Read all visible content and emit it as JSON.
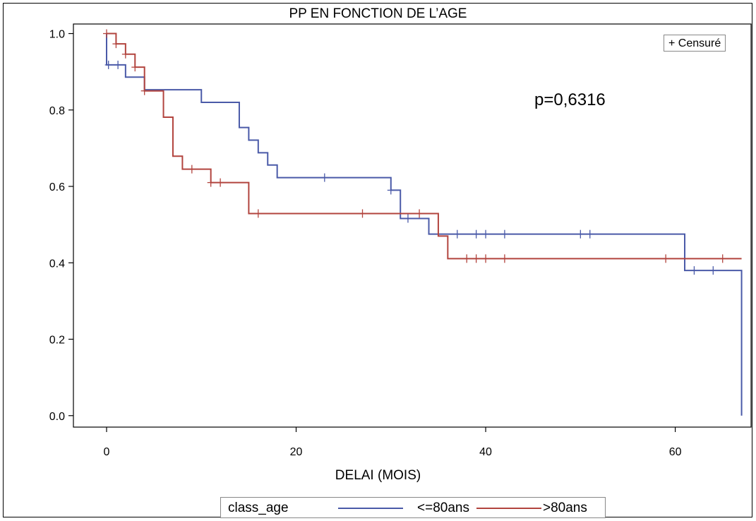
{
  "chart_data": {
    "type": "line",
    "title": "PP EN FONCTION DE L’AGE",
    "xlabel": "DELAI (MOIS)",
    "ylabel": "",
    "xlim": [
      -3.5,
      68
    ],
    "ylim": [
      -0.03,
      1.025
    ],
    "x_ticks": [
      0,
      20,
      40,
      60
    ],
    "y_ticks": [
      0.0,
      0.2,
      0.4,
      0.6,
      0.8,
      1.0
    ],
    "y_tick_labels": [
      "0.0",
      "0.2",
      "0.4",
      "0.6",
      "0.8",
      "1.0"
    ],
    "grid": false,
    "step": true,
    "annotation": "p=0,6316",
    "censor_legend": "+ Censuré",
    "legend_title": "class_age",
    "legend_placement": "bottom",
    "series": [
      {
        "name": "<=80ans",
        "color": "#4a5aa8",
        "steps": [
          [
            0,
            1.0
          ],
          [
            0,
            0.918
          ],
          [
            2,
            0.886
          ],
          [
            4,
            0.853
          ],
          [
            10,
            0.82
          ],
          [
            14,
            0.754
          ],
          [
            15,
            0.721
          ],
          [
            16,
            0.688
          ],
          [
            17,
            0.656
          ],
          [
            18,
            0.623
          ],
          [
            30,
            0.59
          ],
          [
            31,
            0.516
          ],
          [
            34,
            0.475
          ],
          [
            61,
            0.38
          ],
          [
            67,
            0.0
          ]
        ],
        "censored": [
          [
            0.2,
            0.918
          ],
          [
            1.2,
            0.918
          ],
          [
            23,
            0.623
          ],
          [
            30,
            0.59
          ],
          [
            31.8,
            0.516
          ],
          [
            37,
            0.475
          ],
          [
            39,
            0.475
          ],
          [
            40,
            0.475
          ],
          [
            42,
            0.475
          ],
          [
            50,
            0.475
          ],
          [
            51,
            0.475
          ],
          [
            62,
            0.38
          ],
          [
            64,
            0.38
          ]
        ]
      },
      {
        "name": ">80ans",
        "color": "#b2443e",
        "steps": [
          [
            0,
            1.0
          ],
          [
            1,
            0.973
          ],
          [
            2,
            0.946
          ],
          [
            3,
            0.912
          ],
          [
            4,
            0.85
          ],
          [
            6,
            0.781
          ],
          [
            7,
            0.679
          ],
          [
            8,
            0.645
          ],
          [
            11,
            0.61
          ],
          [
            15,
            0.529
          ],
          [
            35,
            0.47
          ],
          [
            36,
            0.411
          ],
          [
            67,
            0.411
          ]
        ],
        "end_x": 65.5,
        "censored": [
          [
            0,
            1.0
          ],
          [
            1,
            0.973
          ],
          [
            2,
            0.946
          ],
          [
            3,
            0.912
          ],
          [
            4,
            0.85
          ],
          [
            9,
            0.645
          ],
          [
            11,
            0.61
          ],
          [
            12,
            0.61
          ],
          [
            16,
            0.529
          ],
          [
            27,
            0.529
          ],
          [
            33,
            0.529
          ],
          [
            38,
            0.411
          ],
          [
            39,
            0.411
          ],
          [
            40,
            0.411
          ],
          [
            42,
            0.411
          ],
          [
            59,
            0.411
          ],
          [
            65,
            0.411
          ]
        ]
      }
    ]
  }
}
